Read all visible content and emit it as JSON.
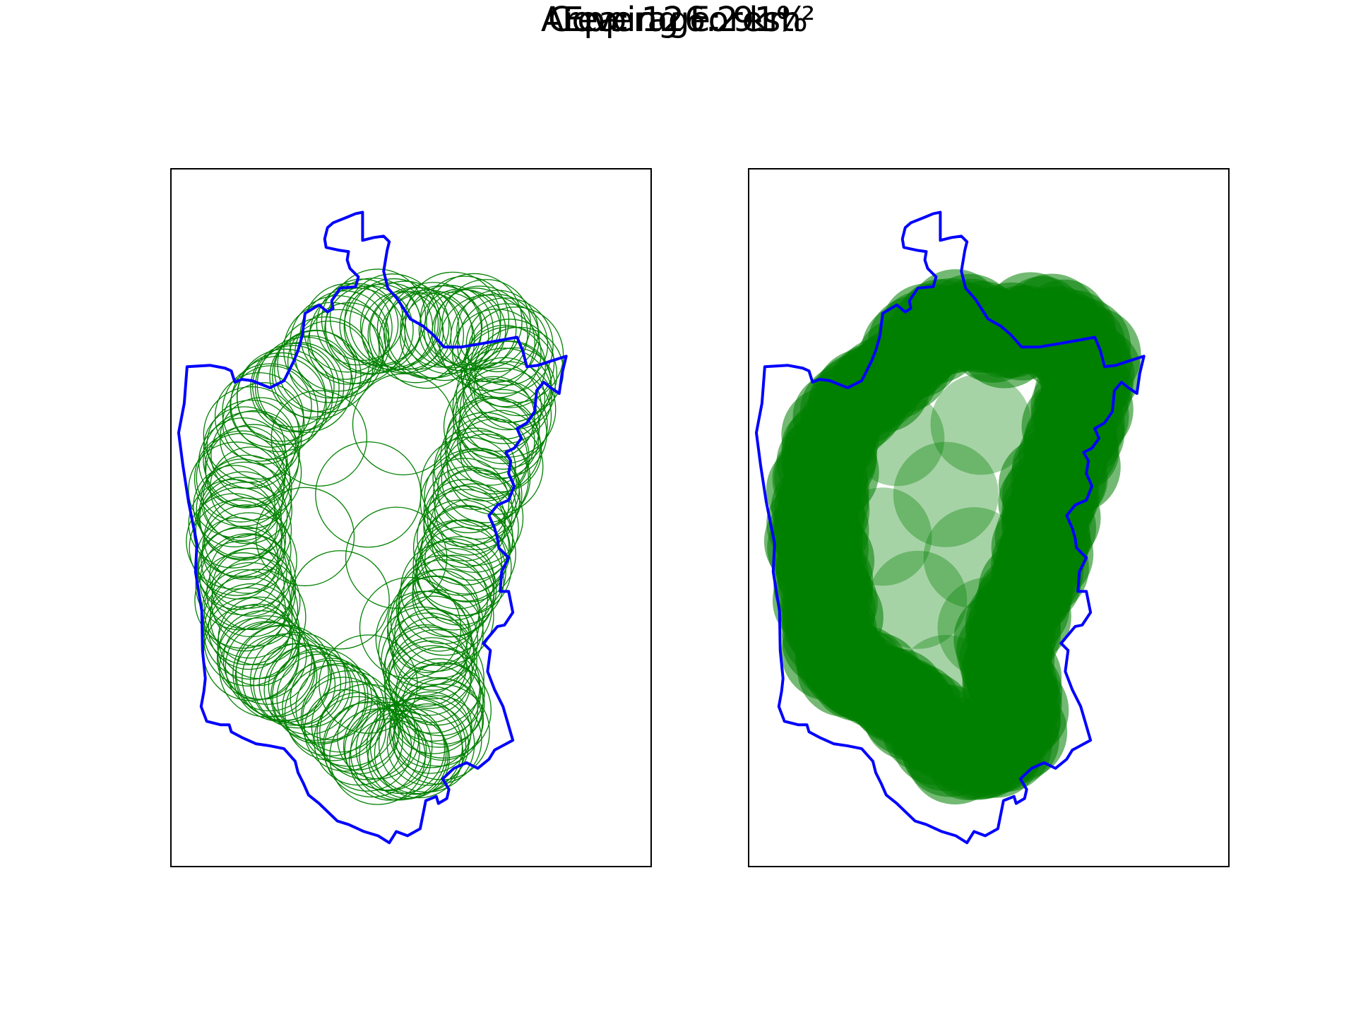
{
  "figure": {
    "title": "Epping Forest",
    "coverage_line": "Coverage: 91%",
    "area_line": "Area: 126.2 km²"
  },
  "colors": {
    "boundary": "#0000ff",
    "circle": "#008000",
    "frame": "#000000"
  },
  "map": {
    "left_panel_style": "circle-outlines",
    "right_panel_style": "filled-circles-semi-transparent"
  }
}
